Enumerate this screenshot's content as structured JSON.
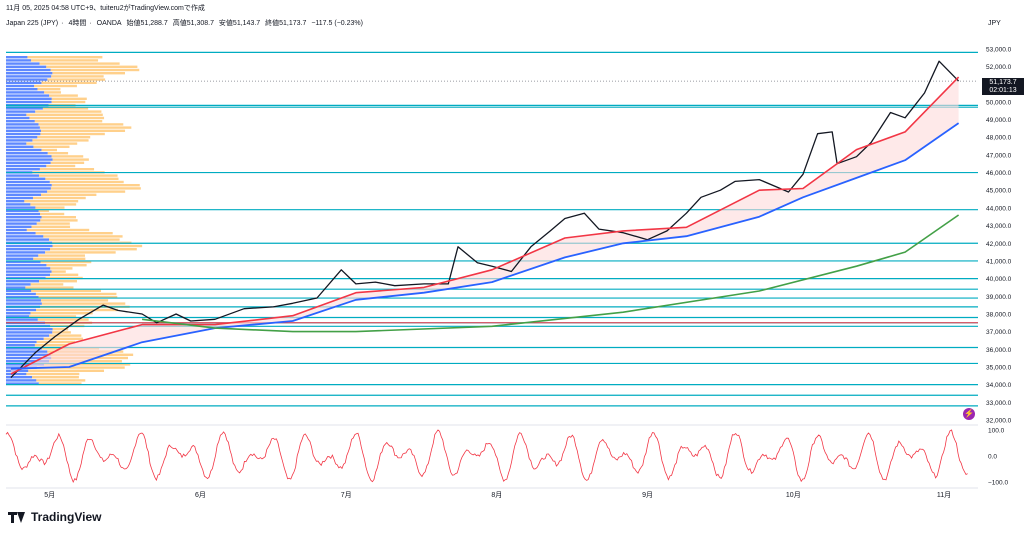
{
  "header": {
    "timestamp": "11月 05, 2025 04:58 UTC+9、tuiteru2がTradingView.comで作成"
  },
  "instrument": {
    "name": "Japan 225 (JPY)",
    "interval": "4時間",
    "broker": "OANDA",
    "open": "始値51,288.7",
    "high": "高値51,308.7",
    "low": "安値51,143.7",
    "close": "終値51,173.7",
    "change": "−117.5 (−0.23%)",
    "currency": "JPY"
  },
  "price_tag": {
    "last": "51,173.7",
    "countdown": "02:01:13"
  },
  "brand": {
    "name": "TradingView"
  },
  "icons": {
    "brand": "tradingview-logo-icon",
    "alert": "lightning-icon"
  },
  "colors": {
    "candles": "#131722",
    "ema_short": "#f23645",
    "ema_mid": "#2962ff",
    "ema_long": "#43a047",
    "horizontal_lines": "#00acc1",
    "oscillator": "#f23645",
    "profile_up": "#2962ff",
    "profile_down": "#ffb74d",
    "fill": "#fddada"
  },
  "chart_data": {
    "type": "line",
    "x_tick_labels": [
      "5月",
      "6月",
      "7月",
      "8月",
      "9月",
      "10月",
      "11月"
    ],
    "y_tick_labels": [
      "53,000.0",
      "52,000.0",
      "51,000.0",
      "50,000.0",
      "49,000.0",
      "48,000.0",
      "47,000.0",
      "46,000.0",
      "45,000.0",
      "44,000.0",
      "43,000.0",
      "42,000.0",
      "41,000.0",
      "40,000.0",
      "39,000.0",
      "38,000.0",
      "37,000.0",
      "36,000.0",
      "35,000.0",
      "34,000.0",
      "33,000.0",
      "32,000.0"
    ],
    "ylim": [
      32000,
      53500
    ],
    "series": [
      {
        "values": [
          [
            "2025-04-23",
            34400
          ],
          [
            "2025-04-28",
            35800
          ],
          [
            "2025-05-02",
            36700
          ],
          [
            "2025-05-07",
            37700
          ],
          [
            "2025-05-12",
            38500
          ],
          [
            "2025-05-15",
            38200
          ],
          [
            "2025-05-20",
            38000
          ],
          [
            "2025-05-23",
            37500
          ],
          [
            "2025-05-27",
            38000
          ],
          [
            "2025-05-30",
            37600
          ],
          [
            "2025-06-04",
            37700
          ],
          [
            "2025-06-10",
            38300
          ],
          [
            "2025-06-16",
            38400
          ],
          [
            "2025-06-20",
            38600
          ],
          [
            "2025-06-25",
            38900
          ],
          [
            "2025-06-30",
            40500
          ],
          [
            "2025-07-03",
            39700
          ],
          [
            "2025-07-07",
            39800
          ],
          [
            "2025-07-11",
            39600
          ],
          [
            "2025-07-17",
            39700
          ],
          [
            "2025-07-22",
            39700
          ],
          [
            "2025-07-24",
            41800
          ],
          [
            "2025-07-28",
            40900
          ],
          [
            "2025-07-31",
            40700
          ],
          [
            "2025-08-04",
            40400
          ],
          [
            "2025-08-08",
            41800
          ],
          [
            "2025-08-12",
            42700
          ],
          [
            "2025-08-15",
            43400
          ],
          [
            "2025-08-19",
            43700
          ],
          [
            "2025-08-22",
            42800
          ],
          [
            "2025-08-27",
            42600
          ],
          [
            "2025-09-01",
            42200
          ],
          [
            "2025-09-05",
            42700
          ],
          [
            "2025-09-09",
            43700
          ],
          [
            "2025-09-12",
            44600
          ],
          [
            "2025-09-16",
            45000
          ],
          [
            "2025-09-19",
            45500
          ],
          [
            "2025-09-24",
            45600
          ],
          [
            "2025-09-30",
            44900
          ],
          [
            "2025-10-03",
            45900
          ],
          [
            "2025-10-06",
            48200
          ],
          [
            "2025-10-09",
            48300
          ],
          [
            "2025-10-10",
            46500
          ],
          [
            "2025-10-14",
            46900
          ],
          [
            "2025-10-17",
            47700
          ],
          [
            "2025-10-21",
            49400
          ],
          [
            "2025-10-24",
            49100
          ],
          [
            "2025-10-28",
            50500
          ],
          [
            "2025-10-31",
            52300
          ],
          [
            "2025-11-04",
            51173.7
          ]
        ]
      },
      {
        "values": [
          [
            "2025-04-23",
            34600
          ],
          [
            "2025-05-05",
            36300
          ],
          [
            "2025-05-20",
            37400
          ],
          [
            "2025-06-04",
            37400
          ],
          [
            "2025-06-20",
            37900
          ],
          [
            "2025-07-03",
            39200
          ],
          [
            "2025-07-17",
            39500
          ],
          [
            "2025-07-31",
            40500
          ],
          [
            "2025-08-15",
            42300
          ],
          [
            "2025-08-27",
            42700
          ],
          [
            "2025-09-09",
            42900
          ],
          [
            "2025-09-24",
            45000
          ],
          [
            "2025-10-03",
            45100
          ],
          [
            "2025-10-14",
            47300
          ],
          [
            "2025-10-24",
            48300
          ],
          [
            "2025-11-04",
            51400
          ]
        ]
      },
      {
        "values": [
          [
            "2025-04-23",
            34900
          ],
          [
            "2025-05-05",
            35000
          ],
          [
            "2025-05-20",
            36400
          ],
          [
            "2025-06-04",
            37200
          ],
          [
            "2025-06-20",
            37600
          ],
          [
            "2025-07-03",
            38800
          ],
          [
            "2025-07-17",
            39200
          ],
          [
            "2025-07-31",
            39800
          ],
          [
            "2025-08-15",
            41200
          ],
          [
            "2025-08-27",
            42000
          ],
          [
            "2025-09-09",
            42400
          ],
          [
            "2025-09-24",
            43500
          ],
          [
            "2025-10-03",
            44600
          ],
          [
            "2025-10-14",
            45700
          ],
          [
            "2025-10-24",
            46700
          ],
          [
            "2025-11-04",
            48800
          ]
        ]
      },
      {
        "values": [
          [
            "2025-05-20",
            37700
          ],
          [
            "2025-06-04",
            37200
          ],
          [
            "2025-06-20",
            37000
          ],
          [
            "2025-07-03",
            37000
          ],
          [
            "2025-07-31",
            37300
          ],
          [
            "2025-08-27",
            38100
          ],
          [
            "2025-09-24",
            39300
          ],
          [
            "2025-10-14",
            40700
          ],
          [
            "2025-10-24",
            41500
          ],
          [
            "2025-11-04",
            43600
          ]
        ]
      }
    ],
    "horizontal_levels": [
      52800,
      49800,
      49700,
      46000,
      43900,
      42000,
      41000,
      40000,
      39400,
      38900,
      38400,
      37800,
      37500,
      37300,
      36100,
      35200,
      34000,
      33400,
      32800
    ],
    "oscillator": {
      "y_tick_labels": [
        "100.0",
        "0.0",
        "−100.0"
      ],
      "ylim": [
        -100,
        100
      ]
    }
  }
}
